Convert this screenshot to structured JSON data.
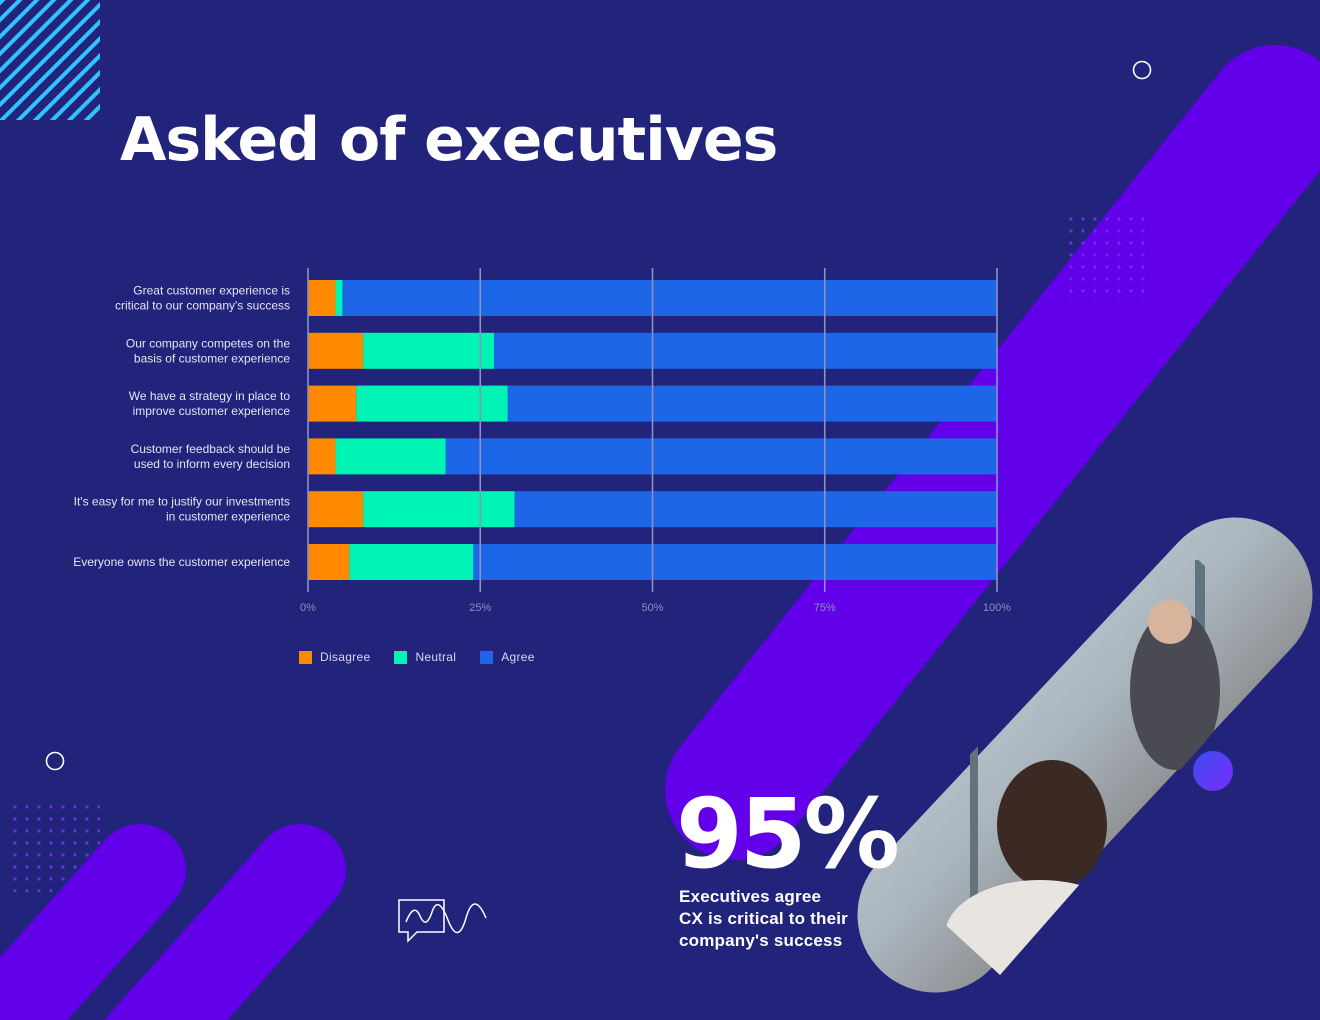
{
  "page": {
    "title": "Asked of executives",
    "background": "#22237a",
    "accent_purple": "#6200ea"
  },
  "chart_data": {
    "type": "bar",
    "orientation": "horizontal",
    "stacked": true,
    "categories": [
      [
        "Great customer experience is",
        "critical to our company's success"
      ],
      [
        "Our company competes on the",
        "basis of customer experience"
      ],
      [
        "We have a strategy in place to",
        "improve customer experience"
      ],
      [
        "Customer feedback should be",
        "used to inform every decision"
      ],
      [
        "It's easy for me to justify our investments",
        "in customer experience"
      ],
      [
        "Everyone owns the customer experience"
      ]
    ],
    "series": [
      {
        "name": "Disagree",
        "color": "#ff8a00",
        "values": [
          4,
          8,
          7,
          4,
          8,
          6
        ]
      },
      {
        "name": "Neutral",
        "color": "#00f5b4",
        "values": [
          1,
          19,
          22,
          16,
          22,
          18
        ]
      },
      {
        "name": "Agree",
        "color": "#1e66e8",
        "values": [
          95,
          73,
          71,
          80,
          70,
          76
        ]
      }
    ],
    "x_ticks": [
      "0%",
      "25%",
      "50%",
      "75%",
      "100%"
    ],
    "xlim": [
      0,
      100
    ],
    "grid": true,
    "legend_position": "bottom-left"
  },
  "stat": {
    "value": "95%",
    "caption_lines": [
      "Executives agree",
      "CX is critical to their",
      "company's success"
    ]
  }
}
